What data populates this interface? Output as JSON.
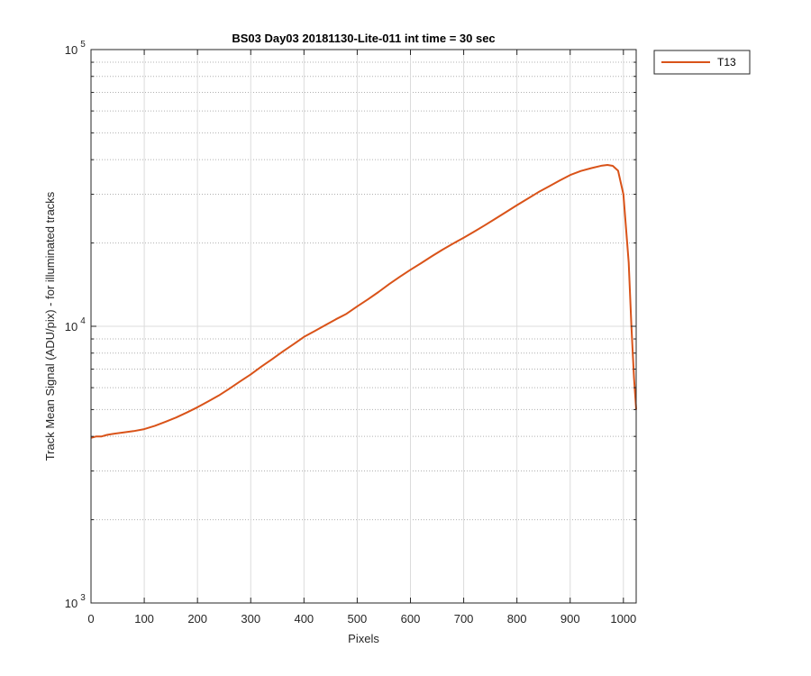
{
  "chart_data": {
    "type": "line",
    "title": "BS03 Day03 20181130-Lite-011 int time = 30 sec",
    "xlabel": "Pixels",
    "ylabel": "Track Mean Signal (ADU/pix) - for illuminated tracks",
    "xlim": [
      0,
      1024
    ],
    "ylim": [
      1000,
      100000
    ],
    "yscale": "log",
    "grid": true,
    "legend_location": "outside top-right",
    "x_ticks": [
      0,
      100,
      200,
      300,
      400,
      500,
      600,
      700,
      800,
      900,
      1000
    ],
    "y_ticks": [
      {
        "value": 1000,
        "base": "10",
        "exp": "3"
      },
      {
        "value": 10000,
        "base": "10",
        "exp": "4"
      },
      {
        "value": 100000,
        "base": "10",
        "exp": "5"
      }
    ],
    "series": [
      {
        "name": "T13",
        "color": "#D95319",
        "x": [
          0,
          10,
          20,
          30,
          40,
          60,
          80,
          100,
          120,
          140,
          160,
          180,
          200,
          220,
          240,
          260,
          280,
          300,
          320,
          340,
          360,
          380,
          400,
          420,
          440,
          460,
          480,
          500,
          520,
          540,
          560,
          580,
          600,
          620,
          640,
          660,
          680,
          700,
          720,
          740,
          760,
          780,
          800,
          820,
          840,
          860,
          880,
          900,
          920,
          940,
          960,
          970,
          980,
          990,
          1000,
          1010,
          1015,
          1020,
          1024
        ],
        "values": [
          3950,
          4000,
          4000,
          4050,
          4080,
          4130,
          4180,
          4250,
          4370,
          4520,
          4680,
          4880,
          5100,
          5350,
          5620,
          5950,
          6320,
          6700,
          7150,
          7600,
          8100,
          8600,
          9150,
          9600,
          10100,
          10600,
          11100,
          11800,
          12500,
          13300,
          14200,
          15100,
          16000,
          16900,
          17900,
          18900,
          19900,
          20900,
          22000,
          23200,
          24500,
          25900,
          27400,
          28900,
          30500,
          32000,
          33600,
          35200,
          36400,
          37300,
          38100,
          38300,
          38000,
          36500,
          30000,
          17000,
          10000,
          6500,
          5000
        ]
      }
    ]
  }
}
